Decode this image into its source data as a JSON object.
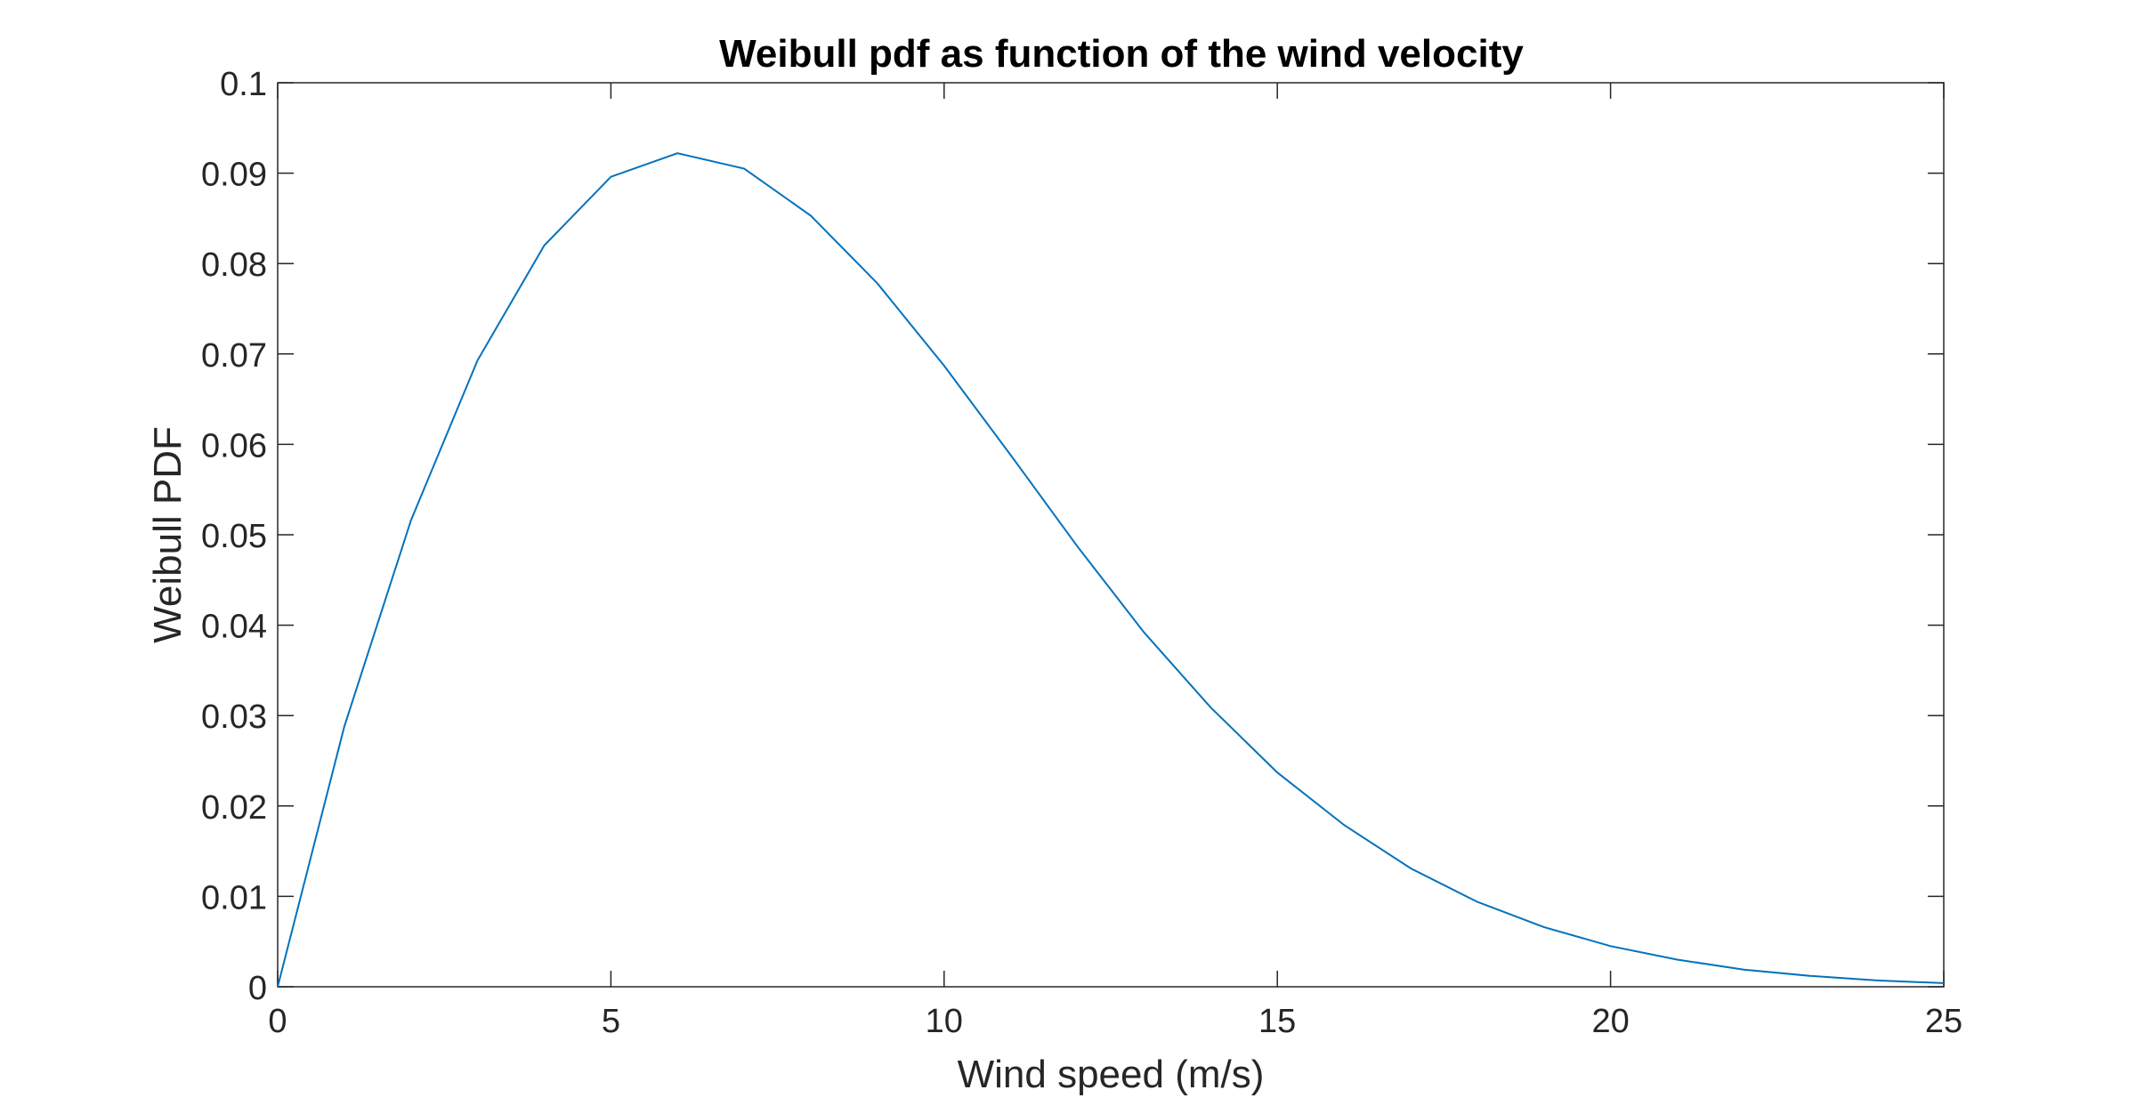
{
  "chart_data": {
    "type": "line",
    "title": "Weibull pdf as function of the wind velocity",
    "xlabel": "Wind speed (m/s)",
    "ylabel": "Weibull PDF",
    "xlim": [
      0,
      25
    ],
    "ylim": [
      0,
      0.1
    ],
    "xticks": [
      0,
      5,
      10,
      15,
      20,
      25
    ],
    "xtick_labels": [
      "0",
      "5",
      "10",
      "15",
      "20",
      "25"
    ],
    "yticks": [
      0,
      0.01,
      0.02,
      0.03,
      0.04,
      0.05,
      0.06,
      0.07,
      0.08,
      0.09,
      0.1
    ],
    "ytick_labels": [
      "0",
      "0.01",
      "0.02",
      "0.03",
      "0.04",
      "0.05",
      "0.06",
      "0.07",
      "0.08",
      "0.09",
      "0.1"
    ],
    "grid": false,
    "box": true,
    "line_color": "#0072BD",
    "axis_color": "#262626",
    "series": [
      {
        "x": [
          0,
          1,
          2,
          3,
          4,
          5,
          6,
          7,
          8,
          9,
          10,
          11,
          12,
          13,
          14,
          15,
          16,
          17,
          18,
          19,
          20,
          21,
          22,
          23,
          24,
          25
        ],
        "values": [
          0,
          0.0288,
          0.0516,
          0.0693,
          0.082,
          0.0896,
          0.0922,
          0.0905,
          0.0853,
          0.0778,
          0.0687,
          0.0588,
          0.0487,
          0.0392,
          0.0309,
          0.0237,
          0.0179,
          0.0131,
          0.0094,
          0.0066,
          0.0045,
          0.003,
          0.0019,
          0.0012,
          0.0007,
          0.0004
        ]
      }
    ]
  }
}
